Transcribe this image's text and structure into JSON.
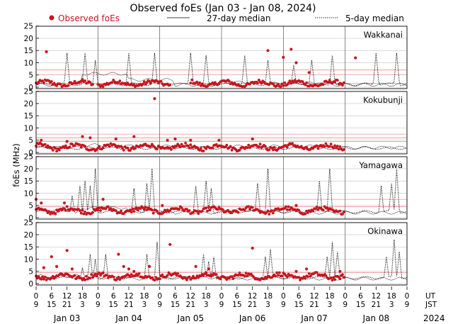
{
  "chart_data": {
    "type": "scatter",
    "title": "Observed foEs (Jan 03 - Jan 08, 2024)",
    "ylabel": "foEs (MHz)",
    "legend": {
      "observed": "Observed foEs",
      "median27": "27-day median",
      "median5": "5-day median"
    },
    "colors": {
      "observed": "#c8141e",
      "ref_red": "#e06060",
      "line": "#000000",
      "grid": "#b4b4b4"
    },
    "ylim": [
      0,
      25
    ],
    "yticks": [
      0,
      5,
      10,
      15,
      20,
      25
    ],
    "xlim_hours_ut": [
      0,
      144
    ],
    "day_boundaries_hours": [
      24,
      48,
      72,
      96,
      120
    ],
    "hour_ticks": {
      "ut": [
        "0",
        "6",
        "12",
        "18",
        "0",
        "6",
        "12",
        "18",
        "0",
        "6",
        "12",
        "18",
        "0",
        "6",
        "12",
        "18",
        "0",
        "6",
        "12",
        "18",
        "0",
        "6",
        "12",
        "18",
        "0"
      ],
      "jst": [
        "9",
        "15",
        "21",
        "3",
        "9",
        "15",
        "21",
        "3",
        "9",
        "15",
        "21",
        "3",
        "9",
        "15",
        "21",
        "3",
        "9",
        "15",
        "21",
        "3",
        "9",
        "15",
        "21",
        "3",
        "9"
      ],
      "ut_label": "UT",
      "jst_label": "JST"
    },
    "dates": [
      "Jan 03",
      "Jan 04",
      "Jan 05",
      "Jan 06",
      "Jan 07",
      "Jan 08"
    ],
    "year": "2024",
    "observed_until_hour": 120,
    "panels": [
      {
        "name": "Wakkanai",
        "ref_lines": [
          1.5,
          5,
          7
        ],
        "median27": [
          1,
          5.5,
          3,
          1,
          2,
          1.5,
          1,
          1
        ],
        "base": 1.5,
        "spikes": [
          [
            12,
            14
          ],
          [
            19,
            14
          ],
          [
            23,
            11
          ],
          [
            36,
            14
          ],
          [
            46,
            14
          ],
          [
            60,
            14
          ],
          [
            66,
            13
          ],
          [
            81,
            13
          ],
          [
            90,
            11
          ],
          [
            100,
            9
          ],
          [
            107,
            11
          ],
          [
            115,
            13
          ],
          [
            132,
            14
          ],
          [
            140,
            14
          ]
        ],
        "outliers": [
          [
            4,
            14.5
          ],
          [
            90,
            15
          ],
          [
            96,
            12.2
          ],
          [
            99,
            15.5
          ],
          [
            101,
            10
          ],
          [
            106,
            6
          ],
          [
            124,
            12
          ]
        ]
      },
      {
        "name": "Kokubunji",
        "ref_lines": [
          4.5,
          6,
          7.5
        ],
        "median27": [
          2,
          3,
          2.5,
          2,
          2.5,
          2.5,
          2,
          2
        ],
        "base": 2.2,
        "spikes": [],
        "outliers": [
          [
            2,
            5
          ],
          [
            12,
            4.5
          ],
          [
            18,
            6.5
          ],
          [
            21,
            6
          ],
          [
            31,
            5.5
          ],
          [
            38,
            6.5
          ],
          [
            46,
            22
          ],
          [
            51,
            5
          ],
          [
            54,
            5.5
          ],
          [
            60,
            5
          ],
          [
            71,
            5
          ],
          [
            84,
            5.5
          ]
        ]
      },
      {
        "name": "Yamagawa",
        "ref_lines": [
          4.5,
          7.5
        ],
        "median27": [
          3,
          4,
          2.5,
          2,
          3,
          2.5,
          2,
          2
        ],
        "base": 3,
        "spikes": [
          [
            14,
            9
          ],
          [
            17,
            13
          ],
          [
            19,
            15
          ],
          [
            21,
            13
          ],
          [
            23,
            20
          ],
          [
            38,
            12
          ],
          [
            43,
            14
          ],
          [
            45,
            20
          ],
          [
            62,
            13
          ],
          [
            66,
            15
          ],
          [
            68,
            12
          ],
          [
            86,
            14
          ],
          [
            90,
            20
          ],
          [
            110,
            15
          ],
          [
            114,
            20
          ],
          [
            134,
            13
          ],
          [
            138,
            14
          ],
          [
            140,
            20
          ]
        ],
        "outliers": [
          [
            0,
            7.5
          ],
          [
            2,
            6
          ],
          [
            11,
            6
          ],
          [
            26,
            7.5
          ],
          [
            49,
            5
          ],
          [
            101,
            5
          ]
        ]
      },
      {
        "name": "Okinawa",
        "ref_lines": [
          4.5
        ],
        "median27": [
          3,
          2.5,
          2,
          2.5,
          2,
          2.5,
          2,
          2
        ],
        "base": 3,
        "spikes": [
          [
            18,
            6.5
          ],
          [
            21,
            12
          ],
          [
            23,
            10
          ],
          [
            27,
            12
          ],
          [
            43,
            12
          ],
          [
            47,
            17
          ],
          [
            65,
            12
          ],
          [
            67,
            9
          ],
          [
            69,
            11
          ],
          [
            89,
            11
          ],
          [
            91,
            14
          ],
          [
            113,
            11
          ],
          [
            115,
            17
          ],
          [
            117,
            13
          ],
          [
            136,
            11
          ],
          [
            139,
            18
          ],
          [
            141,
            13
          ]
        ],
        "outliers": [
          [
            3,
            6.5
          ],
          [
            6,
            11
          ],
          [
            8,
            7
          ],
          [
            12,
            13.5
          ],
          [
            14,
            6
          ],
          [
            32,
            12
          ],
          [
            34,
            7
          ],
          [
            36,
            6
          ],
          [
            38,
            5
          ],
          [
            44,
            7
          ],
          [
            52,
            16
          ],
          [
            62,
            7
          ],
          [
            67,
            6
          ],
          [
            84,
            14.5
          ],
          [
            101,
            5
          ],
          [
            105,
            6
          ],
          [
            118,
            5
          ]
        ]
      }
    ]
  }
}
